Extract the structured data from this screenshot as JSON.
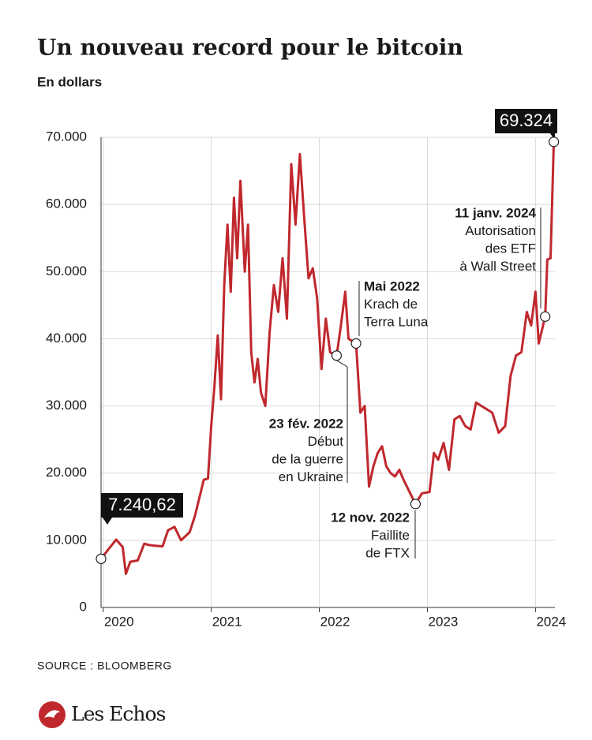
{
  "chart_data": {
    "type": "line",
    "title": "Un nouveau record pour le bitcoin",
    "subtitle": "En dollars",
    "source": "SOURCE : BLOOMBERG",
    "brand": "Les Echos",
    "color": "#c0282d",
    "x": [
      2019.98,
      2020.05,
      2020.12,
      2020.18,
      2020.21,
      2020.25,
      2020.32,
      2020.38,
      2020.42,
      2020.48,
      2020.55,
      2020.6,
      2020.66,
      2020.72,
      2020.8,
      2020.85,
      2020.9,
      2020.93,
      2020.97,
      2021.0,
      2021.03,
      2021.06,
      2021.09,
      2021.12,
      2021.15,
      2021.18,
      2021.21,
      2021.24,
      2021.27,
      2021.31,
      2021.34,
      2021.37,
      2021.4,
      2021.43,
      2021.46,
      2021.5,
      2021.54,
      2021.58,
      2021.62,
      2021.66,
      2021.7,
      2021.74,
      2021.78,
      2021.82,
      2021.86,
      2021.9,
      2021.94,
      2021.98,
      2022.02,
      2022.06,
      2022.1,
      2022.16,
      2022.2,
      2022.24,
      2022.27,
      2022.34,
      2022.38,
      2022.42,
      2022.46,
      2022.5,
      2022.54,
      2022.58,
      2022.62,
      2022.66,
      2022.7,
      2022.74,
      2022.78,
      2022.89,
      2022.95,
      2023.02,
      2023.06,
      2023.1,
      2023.15,
      2023.2,
      2023.25,
      2023.3,
      2023.35,
      2023.4,
      2023.45,
      2023.5,
      2023.55,
      2023.6,
      2023.66,
      2023.72,
      2023.77,
      2023.82,
      2023.87,
      2023.92,
      2023.96,
      2024.0,
      2024.03,
      2024.09,
      2024.11,
      2024.14,
      2024.17
    ],
    "values": [
      7240.62,
      8700,
      10100,
      9000,
      5000,
      6800,
      7000,
      9500,
      9300,
      9200,
      9100,
      11500,
      12000,
      10000,
      11200,
      13700,
      17000,
      19000,
      19200,
      27000,
      33000,
      40500,
      31000,
      48000,
      57000,
      47000,
      61000,
      52000,
      63500,
      50000,
      57000,
      38000,
      33500,
      37000,
      32000,
      30000,
      41000,
      48000,
      44000,
      52000,
      43000,
      66000,
      57000,
      67500,
      58000,
      49000,
      50500,
      46000,
      35500,
      43000,
      38000,
      37500,
      42000,
      47000,
      40000,
      39300,
      29000,
      30000,
      18000,
      21000,
      23000,
      24000,
      21000,
      20000,
      19500,
      20500,
      19000,
      15400,
      17000,
      17200,
      23000,
      22000,
      24500,
      20500,
      28000,
      28500,
      27000,
      26500,
      30500,
      30000,
      29500,
      29000,
      26000,
      27000,
      34500,
      37500,
      38000,
      44000,
      42000,
      47000,
      39300,
      43300,
      51800,
      52000,
      69324
    ],
    "xlim": [
      2019.98,
      2024.18
    ],
    "xticks": [
      2020,
      2021,
      2022,
      2023,
      2024
    ],
    "ylim": [
      0,
      70000
    ],
    "yticks": [
      0,
      {
        "value": 10000,
        "label": "10.000"
      },
      {
        "value": 20000,
        "label": "20.000"
      },
      {
        "value": 30000,
        "label": "30.000"
      },
      {
        "value": 40000,
        "label": "40.000"
      },
      {
        "value": 50000,
        "label": "50.000"
      },
      {
        "value": 60000,
        "label": "60.000"
      },
      {
        "value": 70000,
        "label": "70.000"
      }
    ],
    "grid": true,
    "callouts": [
      {
        "label": "7.240,62",
        "x": 2019.98
      },
      {
        "label": "69.324",
        "x": 2024.17
      }
    ],
    "annotations": [
      {
        "date": "23 fév. 2022",
        "x": 2022.16,
        "lines": [
          "Début",
          "de la guerre",
          "en Ukraine"
        ]
      },
      {
        "date": "Mai 2022",
        "x": 2022.34,
        "lines": [
          "Krach de",
          "Terra Luna"
        ]
      },
      {
        "date": "12 nov. 2022",
        "x": 2022.89,
        "lines": [
          "Faillite",
          "de FTX"
        ]
      },
      {
        "date": "11 janv. 2024",
        "x": 2024.09,
        "lines": [
          "Autorisation",
          "des ETF",
          "à Wall Street"
        ]
      }
    ]
  }
}
